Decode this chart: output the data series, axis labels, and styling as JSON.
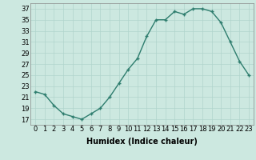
{
  "x": [
    0,
    1,
    2,
    3,
    4,
    5,
    6,
    7,
    8,
    9,
    10,
    11,
    12,
    13,
    14,
    15,
    16,
    17,
    18,
    19,
    20,
    21,
    22,
    23
  ],
  "y": [
    22,
    21.5,
    19.5,
    18,
    17.5,
    17,
    18,
    19,
    21,
    23.5,
    26,
    28,
    32,
    35,
    35,
    36.5,
    36,
    37,
    37,
    36.5,
    34.5,
    31,
    27.5,
    25
  ],
  "line_color": "#2e7d6e",
  "marker_color": "#2e7d6e",
  "bg_color": "#cce8e0",
  "grid_color": "#b0d4cc",
  "xlabel": "Humidex (Indice chaleur)",
  "xlim": [
    -0.5,
    23.5
  ],
  "ylim": [
    16,
    38
  ],
  "yticks": [
    17,
    19,
    21,
    23,
    25,
    27,
    29,
    31,
    33,
    35,
    37
  ],
  "xticks": [
    0,
    1,
    2,
    3,
    4,
    5,
    6,
    7,
    8,
    9,
    10,
    11,
    12,
    13,
    14,
    15,
    16,
    17,
    18,
    19,
    20,
    21,
    22,
    23
  ],
  "xlabel_fontsize": 7,
  "tick_fontsize": 6,
  "line_width": 1.0,
  "marker_size": 2.5
}
